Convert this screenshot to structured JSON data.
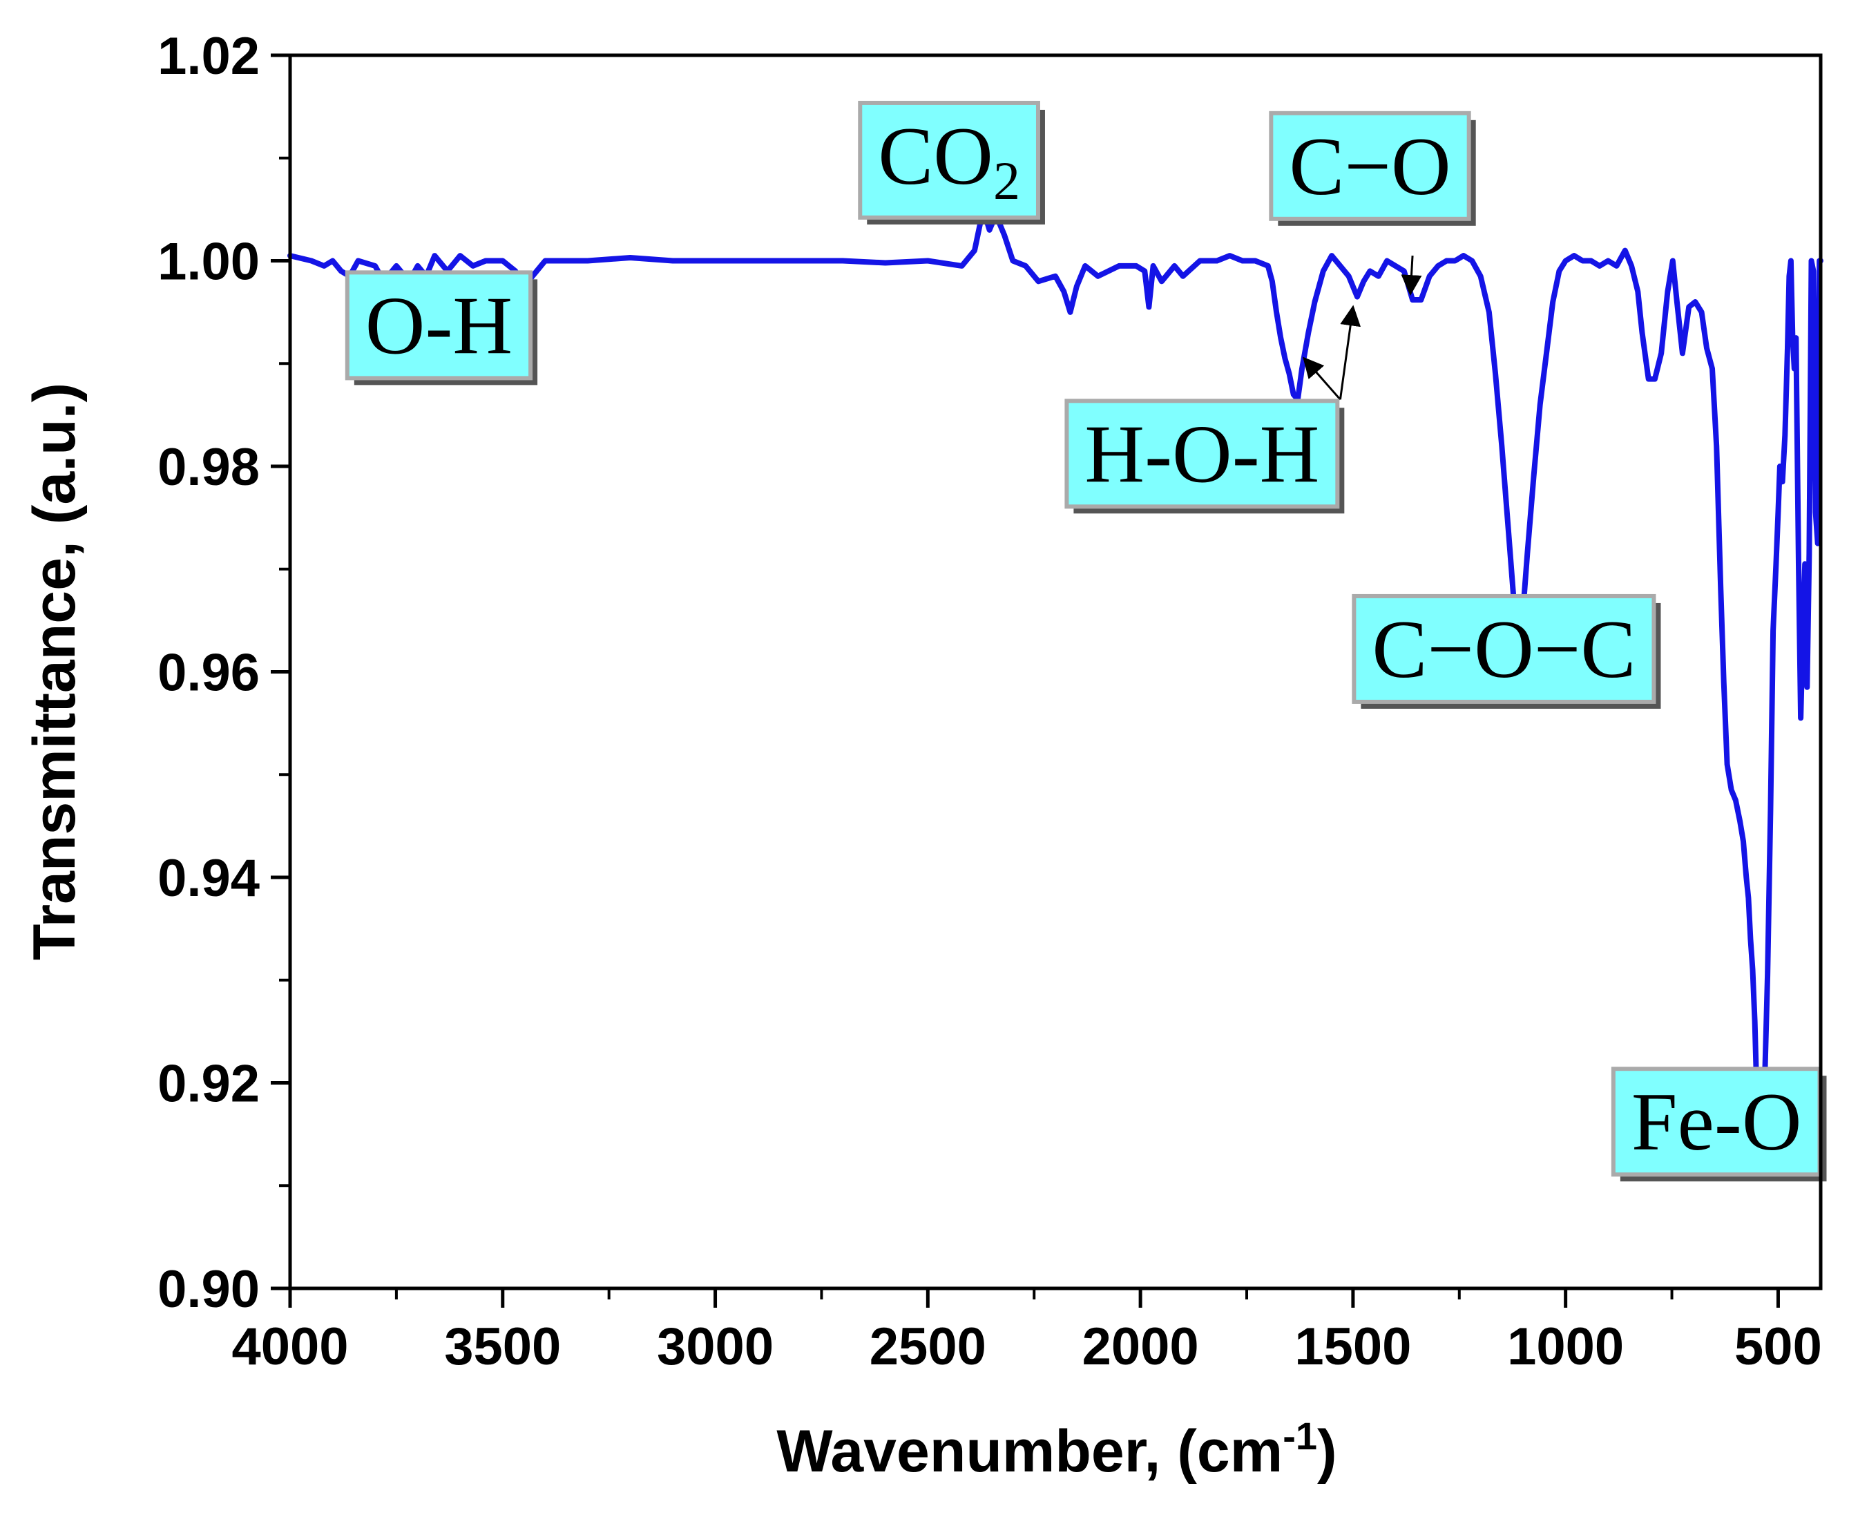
{
  "chart_data": {
    "type": "line",
    "title": "",
    "xlabel": "Wavenumber, (cm",
    "xlabel_sup": "-1",
    "xlabel_end": ")",
    "ylabel": "Transmittance, (a.u.)",
    "xlim": [
      4000,
      400
    ],
    "ylim": [
      0.9,
      1.02
    ],
    "x_reversed": true,
    "x_ticks": [
      4000,
      3500,
      3000,
      2500,
      2000,
      1500,
      1000,
      500
    ],
    "x_tick_labels": [
      "4000",
      "3500",
      "3000",
      "2500",
      "2000",
      "1500",
      "1000",
      "500"
    ],
    "y_ticks": [
      0.9,
      0.92,
      0.94,
      0.96,
      0.98,
      1.0,
      1.02
    ],
    "y_tick_labels": [
      "0.90",
      "0.92",
      "0.94",
      "0.96",
      "0.98",
      "1.00",
      "1.02"
    ],
    "grid": false,
    "line_color": "#1414e6",
    "annotation_fill": "#80ffff",
    "series": [
      {
        "values": [
          [
            4000,
            1.0005
          ],
          [
            3950,
            1.0
          ],
          [
            3920,
            0.9995
          ],
          [
            3900,
            1.0
          ],
          [
            3880,
            0.999
          ],
          [
            3860,
            0.9985
          ],
          [
            3840,
            1.0
          ],
          [
            3800,
            0.9995
          ],
          [
            3780,
            0.998
          ],
          [
            3750,
            0.9995
          ],
          [
            3720,
            0.998
          ],
          [
            3700,
            0.9995
          ],
          [
            3680,
            0.9985
          ],
          [
            3660,
            1.0005
          ],
          [
            3630,
            0.999
          ],
          [
            3600,
            1.0005
          ],
          [
            3570,
            0.9995
          ],
          [
            3540,
            1.0
          ],
          [
            3500,
            1.0
          ],
          [
            3470,
            0.999
          ],
          [
            3450,
            0.9975
          ],
          [
            3420,
            0.999
          ],
          [
            3400,
            1.0
          ],
          [
            3300,
            1.0
          ],
          [
            3200,
            1.0003
          ],
          [
            3100,
            1.0
          ],
          [
            3000,
            1.0
          ],
          [
            2900,
            1.0
          ],
          [
            2800,
            1.0
          ],
          [
            2700,
            1.0
          ],
          [
            2600,
            0.9998
          ],
          [
            2500,
            1.0
          ],
          [
            2420,
            0.9995
          ],
          [
            2390,
            1.001
          ],
          [
            2370,
            1.005
          ],
          [
            2355,
            1.003
          ],
          [
            2340,
            1.0045
          ],
          [
            2320,
            1.0025
          ],
          [
            2300,
            1.0
          ],
          [
            2270,
            0.9995
          ],
          [
            2240,
            0.998
          ],
          [
            2200,
            0.9985
          ],
          [
            2180,
            0.997
          ],
          [
            2165,
            0.995
          ],
          [
            2150,
            0.9975
          ],
          [
            2130,
            0.9995
          ],
          [
            2100,
            0.9985
          ],
          [
            2050,
            0.9995
          ],
          [
            2010,
            0.9995
          ],
          [
            1990,
            0.999
          ],
          [
            1980,
            0.9955
          ],
          [
            1970,
            0.9995
          ],
          [
            1950,
            0.998
          ],
          [
            1920,
            0.9995
          ],
          [
            1900,
            0.9985
          ],
          [
            1860,
            1.0
          ],
          [
            1820,
            1.0
          ],
          [
            1790,
            1.0005
          ],
          [
            1760,
            1.0
          ],
          [
            1730,
            1.0
          ],
          [
            1700,
            0.9995
          ],
          [
            1690,
            0.998
          ],
          [
            1680,
            0.995
          ],
          [
            1670,
            0.9925
          ],
          [
            1660,
            0.9905
          ],
          [
            1650,
            0.989
          ],
          [
            1640,
            0.987
          ],
          [
            1630,
            0.9865
          ],
          [
            1620,
            0.9895
          ],
          [
            1605,
            0.993
          ],
          [
            1590,
            0.996
          ],
          [
            1570,
            0.999
          ],
          [
            1550,
            1.0005
          ],
          [
            1530,
            0.9995
          ],
          [
            1510,
            0.9985
          ],
          [
            1490,
            0.9965
          ],
          [
            1475,
            0.998
          ],
          [
            1460,
            0.999
          ],
          [
            1440,
            0.9985
          ],
          [
            1420,
            1.0
          ],
          [
            1400,
            0.9995
          ],
          [
            1380,
            0.999
          ],
          [
            1360,
            0.9962
          ],
          [
            1340,
            0.9962
          ],
          [
            1320,
            0.9985
          ],
          [
            1300,
            0.9995
          ],
          [
            1280,
            1.0
          ],
          [
            1260,
            1.0
          ],
          [
            1240,
            1.0005
          ],
          [
            1220,
            1.0
          ],
          [
            1200,
            0.9985
          ],
          [
            1180,
            0.995
          ],
          [
            1165,
            0.989
          ],
          [
            1150,
            0.982
          ],
          [
            1135,
            0.974
          ],
          [
            1120,
            0.966
          ],
          [
            1110,
            0.9635
          ],
          [
            1100,
            0.966
          ],
          [
            1090,
            0.9715
          ],
          [
            1075,
            0.979
          ],
          [
            1060,
            0.986
          ],
          [
            1045,
            0.991
          ],
          [
            1030,
            0.996
          ],
          [
            1015,
            0.999
          ],
          [
            1000,
            1.0
          ],
          [
            980,
            1.0005
          ],
          [
            960,
            1.0
          ],
          [
            940,
            1.0
          ],
          [
            920,
            0.9995
          ],
          [
            900,
            1.0
          ],
          [
            880,
            0.9995
          ],
          [
            860,
            1.001
          ],
          [
            845,
            0.9995
          ],
          [
            830,
            0.997
          ],
          [
            820,
            0.993
          ],
          [
            805,
            0.9885
          ],
          [
            790,
            0.9885
          ],
          [
            775,
            0.991
          ],
          [
            760,
            0.997
          ],
          [
            748,
            1.0
          ],
          [
            738,
            0.996
          ],
          [
            725,
            0.991
          ],
          [
            710,
            0.9955
          ],
          [
            695,
            0.996
          ],
          [
            680,
            0.995
          ],
          [
            668,
            0.9915
          ],
          [
            655,
            0.9895
          ],
          [
            645,
            0.982
          ],
          [
            635,
            0.968
          ],
          [
            628,
            0.959
          ],
          [
            620,
            0.951
          ],
          [
            610,
            0.9485
          ],
          [
            600,
            0.9475
          ],
          [
            590,
            0.9455
          ],
          [
            582,
            0.9435
          ],
          [
            575,
            0.94
          ],
          [
            570,
            0.938
          ],
          [
            565,
            0.934
          ],
          [
            560,
            0.931
          ],
          [
            555,
            0.926
          ],
          [
            550,
            0.9185
          ],
          [
            545,
            0.9145
          ],
          [
            540,
            0.917
          ],
          [
            532,
            0.9195
          ],
          [
            525,
            0.9305
          ],
          [
            518,
            0.9465
          ],
          [
            512,
            0.964
          ],
          [
            505,
            0.9705
          ],
          [
            500,
            0.9755
          ],
          [
            496,
            0.98
          ],
          [
            490,
            0.9785
          ],
          [
            484,
            0.983
          ],
          [
            478,
            0.9915
          ],
          [
            474,
            0.9985
          ],
          [
            470,
            1.0
          ],
          [
            466,
            0.9925
          ],
          [
            462,
            0.9895
          ],
          [
            458,
            0.9925
          ],
          [
            452,
            0.9705
          ],
          [
            447,
            0.9555
          ],
          [
            442,
            0.9635
          ],
          [
            437,
            0.9705
          ],
          [
            432,
            0.9585
          ],
          [
            427,
            0.9715
          ],
          [
            422,
            1.0
          ],
          [
            417,
            0.999
          ],
          [
            412,
            0.9755
          ],
          [
            407,
            0.9725
          ],
          [
            403,
            1.0
          ],
          [
            400,
            1.0
          ]
        ]
      }
    ],
    "annotations": [
      {
        "label": "O-H",
        "sub": "",
        "box_x": 3650,
        "box_y": 0.991
      },
      {
        "label": "CO",
        "sub": "2",
        "box_x": 2450,
        "box_y": 1.0075
      },
      {
        "label": "C−O",
        "sub": "",
        "box_x": 1460,
        "box_y": 1.0065
      },
      {
        "label": "H-O-H",
        "sub": "",
        "box_x": 1855,
        "box_y": 0.9785
      },
      {
        "label": "C−O−C",
        "sub": "",
        "box_x": 1145,
        "box_y": 0.9595
      },
      {
        "label": "Fe-O",
        "sub": "",
        "box_x": 645,
        "box_y": 0.9135
      }
    ],
    "arrows": [
      {
        "from_x": 1360,
        "from_y": 1.0005,
        "to_x": 1365,
        "to_y": 0.9968
      },
      {
        "from_x": 1530,
        "from_y": 0.9865,
        "to_x": 1615,
        "to_y": 0.9905
      },
      {
        "from_x": 1530,
        "from_y": 0.9865,
        "to_x": 1500,
        "to_y": 0.9955
      }
    ]
  }
}
